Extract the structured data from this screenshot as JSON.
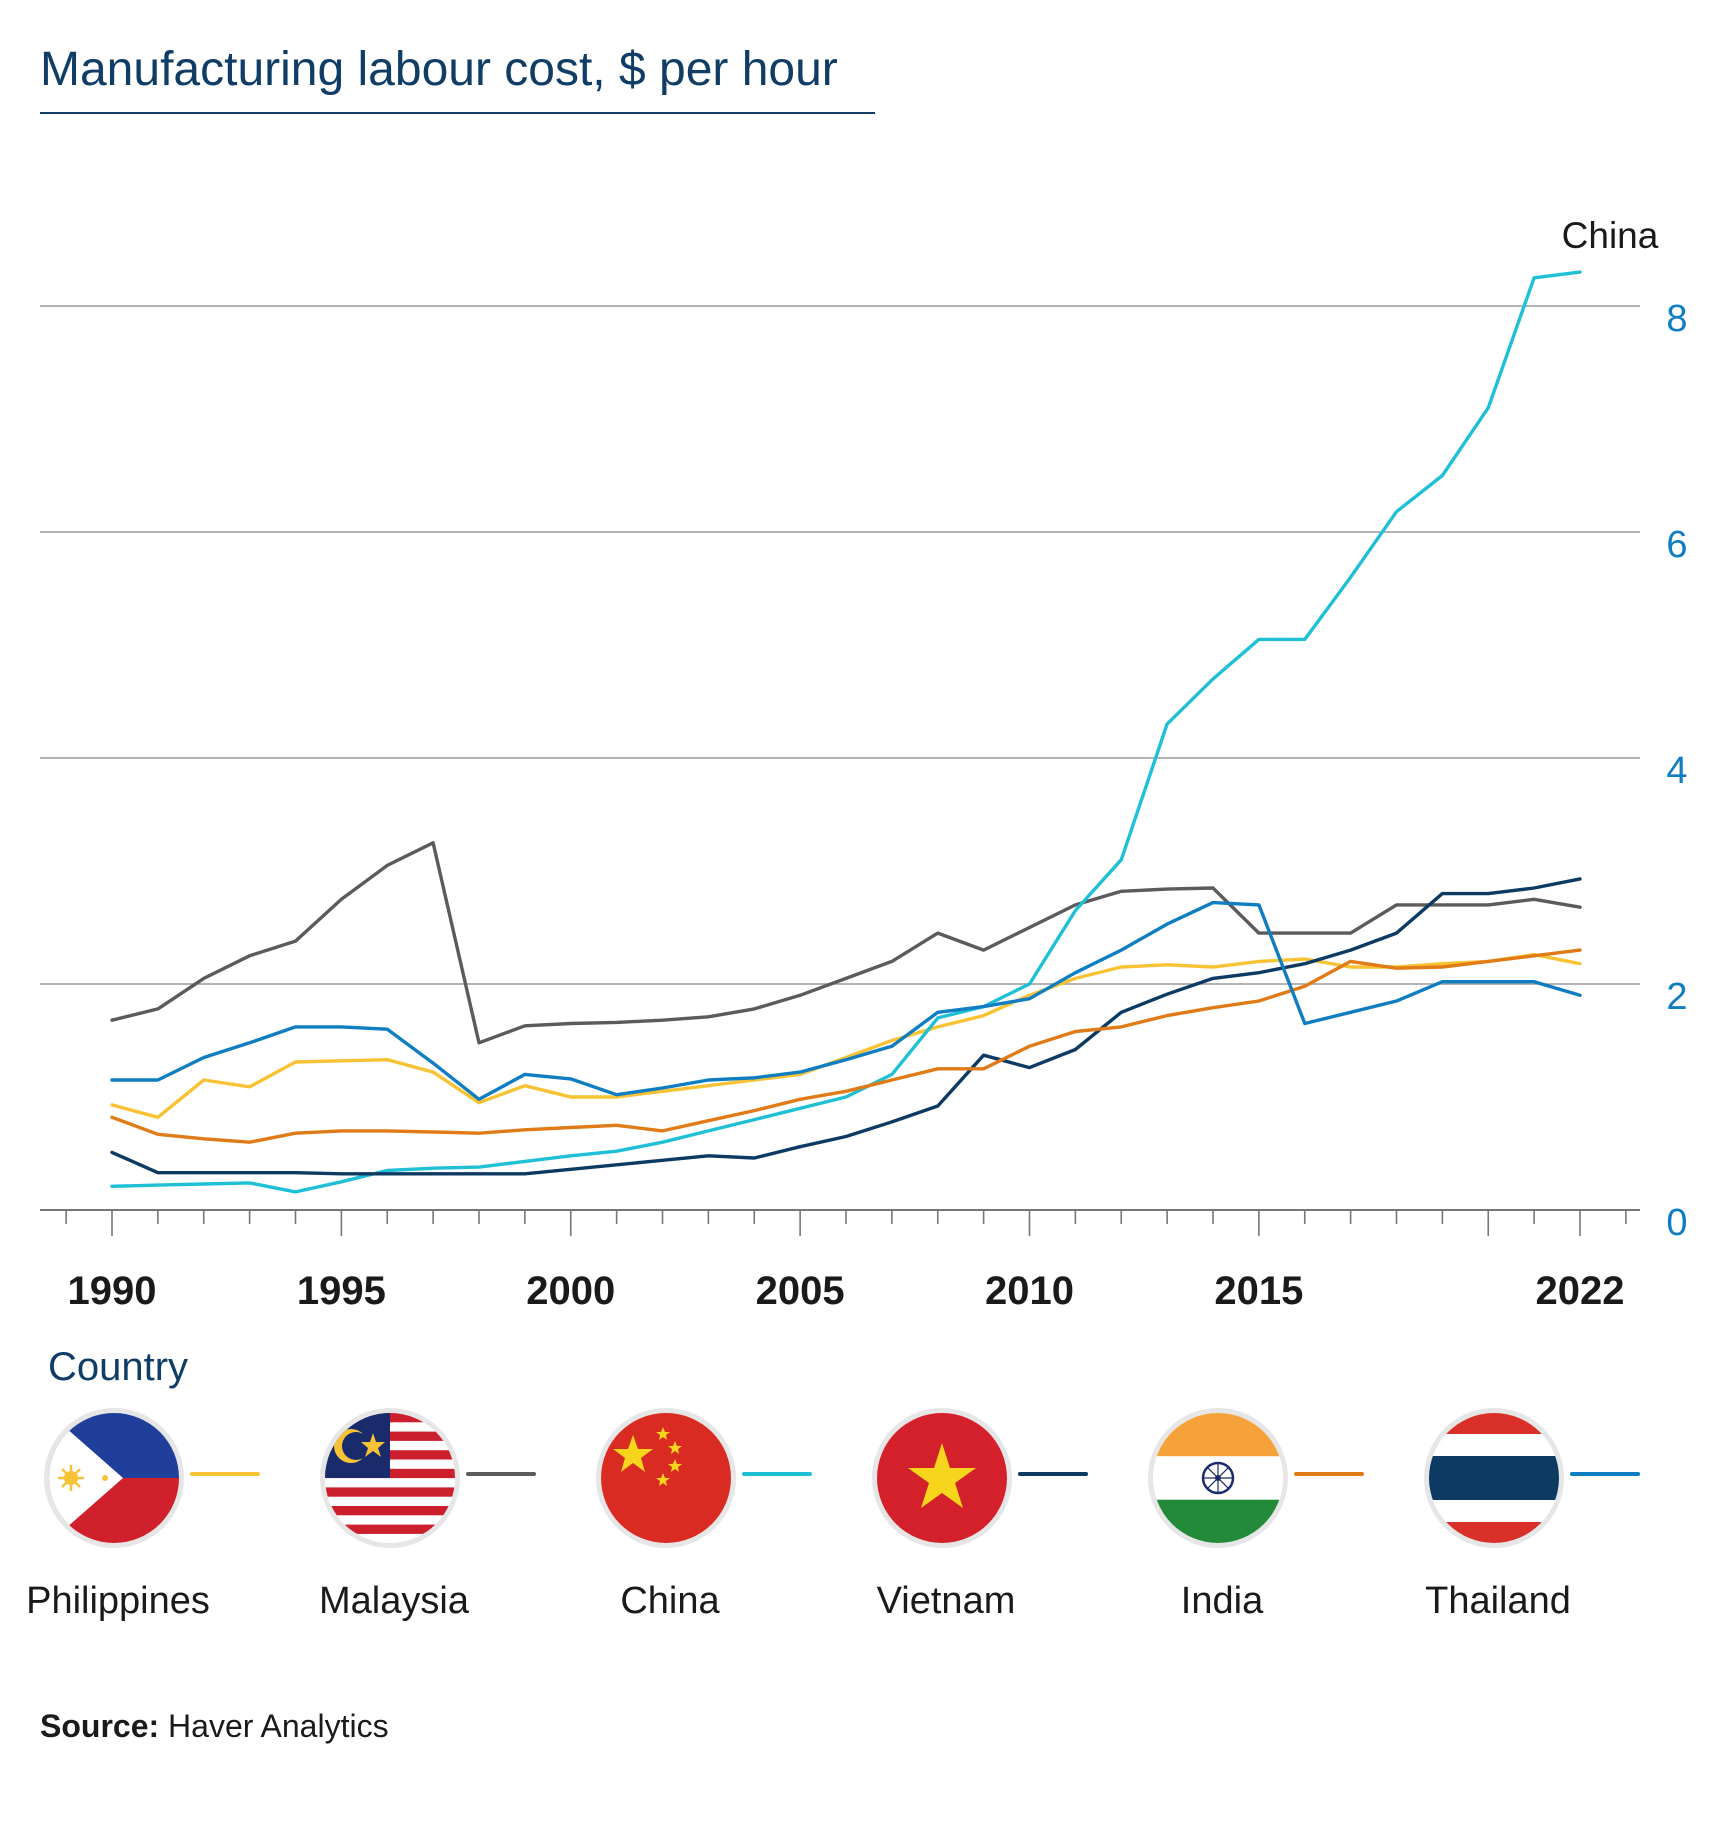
{
  "chart_data": {
    "type": "line",
    "title": "Manufacturing labour cost, $ per hour",
    "ylim": [
      0,
      8.8
    ],
    "yticks": [
      "0",
      "2",
      "4",
      "6",
      "8"
    ],
    "xlim": [
      1988.5,
      2023
    ],
    "xtick_labels": [
      "1990",
      "1995",
      "2000",
      "2005",
      "2010",
      "2015",
      "2022"
    ],
    "grid": true,
    "y_axis_side": "right",
    "annotation": "China",
    "series": [
      {
        "name": "Philippines",
        "color": "#f7c335",
        "x": [
          1990,
          1991,
          1992,
          1993,
          1994,
          1995,
          1996,
          1997,
          1998,
          1999,
          2000,
          2001,
          2002,
          2003,
          2004,
          2005,
          2006,
          2007,
          2008,
          2009,
          2010,
          2011,
          2012,
          2013,
          2014,
          2015,
          2016,
          2017,
          2018,
          2019,
          2020,
          2021,
          2022
        ],
        "values": [
          0.93,
          0.82,
          1.15,
          1.09,
          1.31,
          1.32,
          1.33,
          1.22,
          0.95,
          1.1,
          1.0,
          1.0,
          1.05,
          1.1,
          1.15,
          1.2,
          1.35,
          1.5,
          1.62,
          1.72,
          1.9,
          2.05,
          2.15,
          2.17,
          2.15,
          2.2,
          2.22,
          2.15,
          2.15,
          2.18,
          2.2,
          2.26,
          2.18
        ]
      },
      {
        "name": "Malaysia",
        "color": "#5b5b5b",
        "x": [
          1990,
          1991,
          1992,
          1993,
          1994,
          1995,
          1996,
          1997,
          1998,
          1999,
          2000,
          2001,
          2002,
          2003,
          2004,
          2005,
          2006,
          2007,
          2008,
          2009,
          2010,
          2011,
          2012,
          2013,
          2014,
          2015,
          2016,
          2017,
          2018,
          2019,
          2020,
          2021,
          2022
        ],
        "values": [
          1.68,
          1.78,
          2.05,
          2.25,
          2.38,
          2.75,
          3.05,
          3.25,
          1.48,
          1.63,
          1.65,
          1.66,
          1.68,
          1.71,
          1.78,
          1.9,
          2.05,
          2.2,
          2.45,
          2.3,
          2.5,
          2.7,
          2.82,
          2.84,
          2.85,
          2.45,
          2.45,
          2.45,
          2.7,
          2.7,
          2.7,
          2.75,
          2.68
        ]
      },
      {
        "name": "China",
        "color": "#1fc0d6",
        "x": [
          1990,
          1991,
          1992,
          1993,
          1994,
          1995,
          1996,
          1997,
          1998,
          1999,
          2000,
          2001,
          2002,
          2003,
          2004,
          2005,
          2006,
          2007,
          2008,
          2009,
          2010,
          2011,
          2012,
          2013,
          2014,
          2015,
          2016,
          2017,
          2018,
          2019,
          2020,
          2021,
          2022
        ],
        "values": [
          0.21,
          0.22,
          0.23,
          0.24,
          0.16,
          0.25,
          0.35,
          0.37,
          0.38,
          0.43,
          0.48,
          0.52,
          0.6,
          0.7,
          0.8,
          0.9,
          1.0,
          1.2,
          1.7,
          1.8,
          2.0,
          2.65,
          3.1,
          4.3,
          4.7,
          5.05,
          5.05,
          5.6,
          6.18,
          6.5,
          7.1,
          8.25,
          8.3
        ]
      },
      {
        "name": "Vietnam",
        "color": "#0d3a63",
        "x": [
          1990,
          1991,
          1992,
          1993,
          1994,
          1995,
          1996,
          1997,
          1998,
          1999,
          2000,
          2001,
          2002,
          2003,
          2004,
          2005,
          2006,
          2007,
          2008,
          2009,
          2010,
          2011,
          2012,
          2013,
          2014,
          2015,
          2016,
          2017,
          2018,
          2019,
          2020,
          2021,
          2022
        ],
        "values": [
          0.51,
          0.33,
          0.33,
          0.33,
          0.33,
          0.32,
          0.32,
          0.32,
          0.32,
          0.32,
          0.36,
          0.4,
          0.44,
          0.48,
          0.46,
          0.56,
          0.65,
          0.78,
          0.92,
          1.37,
          1.26,
          1.42,
          1.75,
          1.91,
          2.05,
          2.1,
          2.18,
          2.3,
          2.45,
          2.8,
          2.8,
          2.85,
          2.93
        ]
      },
      {
        "name": "India",
        "color": "#e07b18",
        "x": [
          1990,
          1991,
          1992,
          1993,
          1994,
          1995,
          1996,
          1997,
          1998,
          1999,
          2000,
          2001,
          2002,
          2003,
          2004,
          2005,
          2006,
          2007,
          2008,
          2009,
          2010,
          2011,
          2012,
          2013,
          2014,
          2015,
          2016,
          2017,
          2018,
          2019,
          2020,
          2021,
          2022
        ],
        "values": [
          0.82,
          0.67,
          0.63,
          0.6,
          0.68,
          0.7,
          0.7,
          0.69,
          0.68,
          0.71,
          0.73,
          0.75,
          0.7,
          0.79,
          0.88,
          0.98,
          1.05,
          1.15,
          1.25,
          1.25,
          1.45,
          1.58,
          1.62,
          1.72,
          1.79,
          1.85,
          1.98,
          2.2,
          2.14,
          2.15,
          2.2,
          2.25,
          2.3
        ]
      },
      {
        "name": "Thailand",
        "color": "#0f7dc2",
        "x": [
          1990,
          1991,
          1992,
          1993,
          1994,
          1995,
          1996,
          1997,
          1998,
          1999,
          2000,
          2001,
          2002,
          2003,
          2004,
          2005,
          2006,
          2007,
          2008,
          2009,
          2010,
          2011,
          2012,
          2013,
          2014,
          2015,
          2016,
          2017,
          2018,
          2019,
          2020,
          2021,
          2022
        ],
        "values": [
          1.15,
          1.15,
          1.35,
          1.48,
          1.62,
          1.62,
          1.6,
          1.3,
          0.98,
          1.2,
          1.16,
          1.02,
          1.08,
          1.15,
          1.17,
          1.22,
          1.33,
          1.45,
          1.75,
          1.8,
          1.87,
          2.1,
          2.3,
          2.53,
          2.72,
          2.7,
          1.65,
          1.75,
          1.85,
          2.02,
          2.02,
          2.02,
          1.9
        ]
      }
    ]
  },
  "legend": {
    "title": "Country",
    "items": [
      {
        "name": "Philippines",
        "color": "#f7c335",
        "flag_icon": "philippines-flag-icon"
      },
      {
        "name": "Malaysia",
        "color": "#5b5b5b",
        "flag_icon": "malaysia-flag-icon"
      },
      {
        "name": "China",
        "color": "#1fc0d6",
        "flag_icon": "china-flag-icon"
      },
      {
        "name": "Vietnam",
        "color": "#0d3a63",
        "flag_icon": "vietnam-flag-icon"
      },
      {
        "name": "India",
        "color": "#e07b18",
        "flag_icon": "india-flag-icon"
      },
      {
        "name": "Thailand",
        "color": "#0f7dc2",
        "flag_icon": "thailand-flag-icon"
      }
    ]
  },
  "source": {
    "label": "Source:",
    "text": "Haver Analytics"
  },
  "colors": {
    "title": "#0f3d66",
    "y_tick_labels": "#0f7dc2",
    "gridline": "#9a9a9a",
    "axis": "#777777"
  }
}
